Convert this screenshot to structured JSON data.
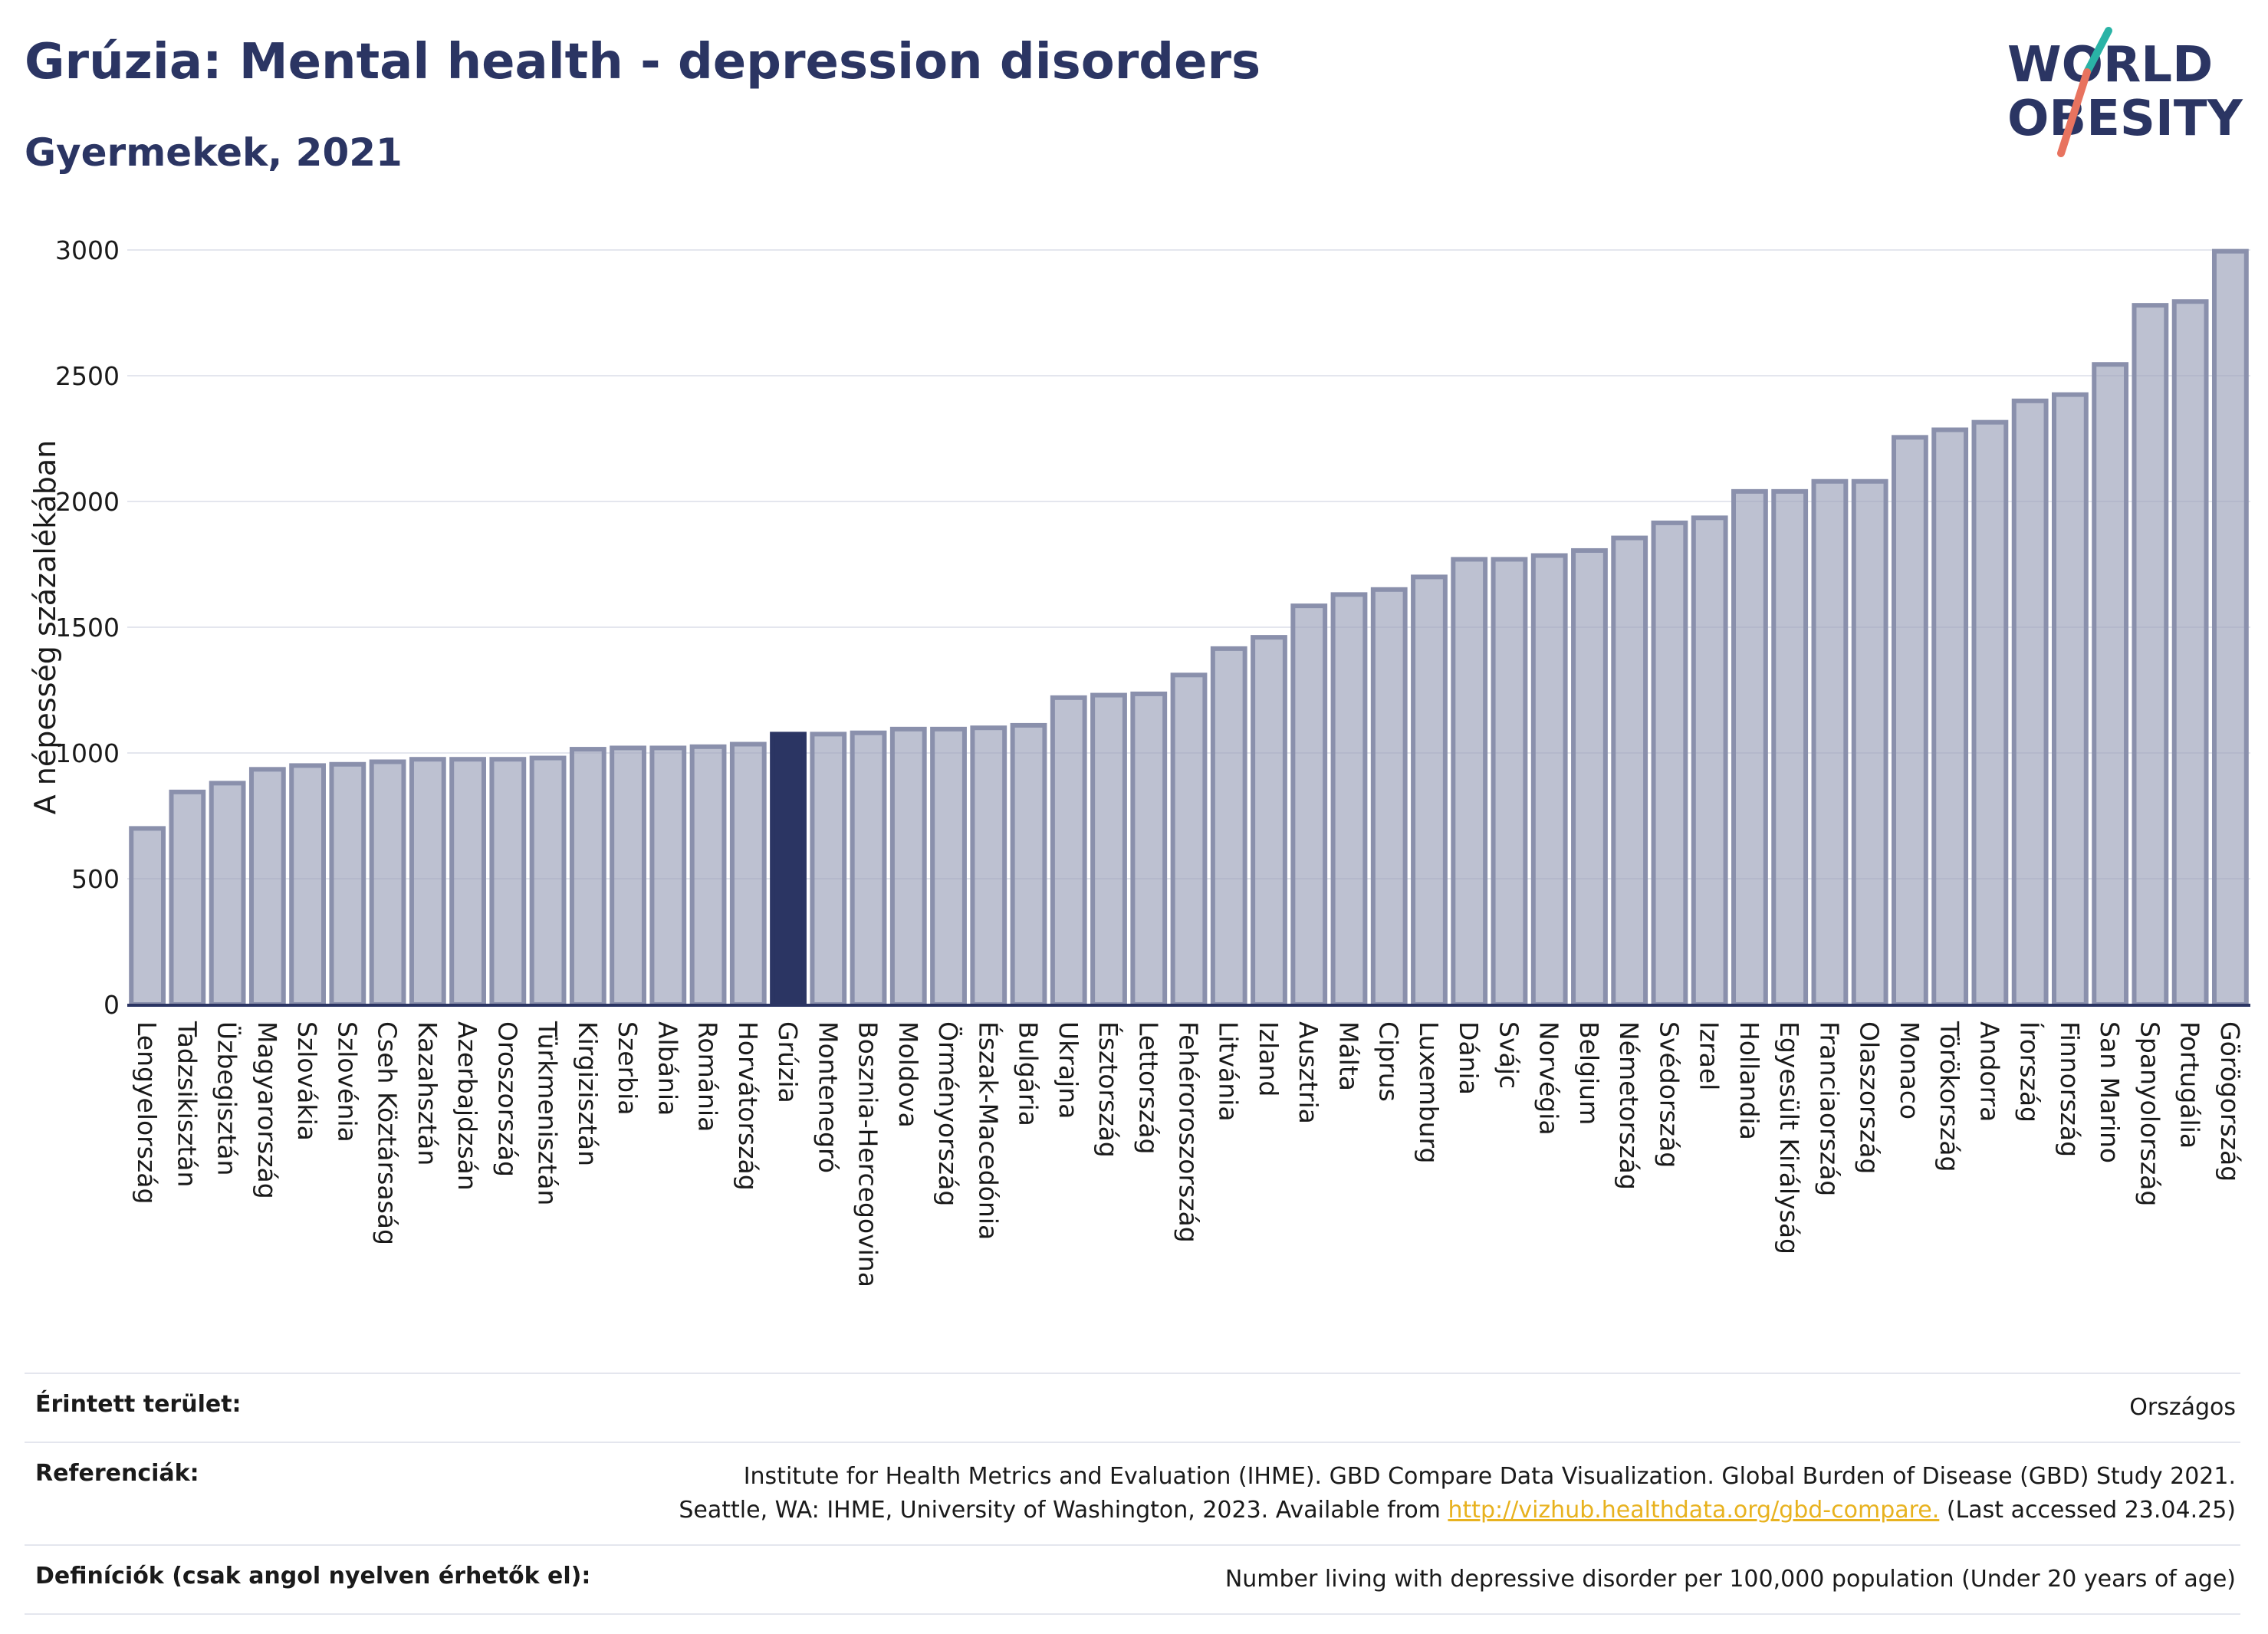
{
  "header": {
    "title": "Grúzia: Mental health - depression disorders",
    "subtitle": "Gyermekek, 2021"
  },
  "logo": {
    "line1": "WORLD",
    "line2": "OBESITY"
  },
  "chart_data": {
    "type": "bar",
    "title": "Grúzia: Mental health - depression disorders",
    "subtitle": "Gyermekek, 2021",
    "xlabel": "",
    "ylabel": "A népesség százalékában",
    "ylim": [
      0,
      3000
    ],
    "yticks": [
      0,
      500,
      1000,
      1500,
      2000,
      2500,
      3000
    ],
    "grid": true,
    "highlight": "Grúzia",
    "colors": {
      "bar": "#9aa0b8",
      "highlight": "#2b3563"
    },
    "categories": [
      "Lengyelország",
      "Tadzsikisztán",
      "Üzbegisztán",
      "Magyarország",
      "Szlovákia",
      "Szlovénia",
      "Cseh Köztársaság",
      "Kazahsztán",
      "Azerbajdzsán",
      "Oroszország",
      "Türkmenisztán",
      "Kirgizisztán",
      "Szerbia",
      "Albánia",
      "Románia",
      "Horvátország",
      "Grúzia",
      "Montenegró",
      "Bosznia-Hercegovina",
      "Moldova",
      "Örményország",
      "Észak-Macedónia",
      "Bulgária",
      "Ukrajna",
      "Észtország",
      "Lettország",
      "Fehéroroszország",
      "Litvánia",
      "Izland",
      "Ausztria",
      "Málta",
      "Ciprus",
      "Luxemburg",
      "Dánia",
      "Svájc",
      "Norvégia",
      "Belgium",
      "Németország",
      "Svédország",
      "Izrael",
      "Hollandia",
      "Egyesült Királyság",
      "Franciaország",
      "Olaszország",
      "Monaco",
      "Törökország",
      "Andorra",
      "Írország",
      "Finnország",
      "San Marino",
      "Spanyolország",
      "Portugália",
      "Görögország"
    ],
    "values": [
      700,
      845,
      880,
      935,
      950,
      955,
      965,
      975,
      975,
      975,
      980,
      1015,
      1020,
      1020,
      1025,
      1035,
      1075,
      1075,
      1080,
      1095,
      1095,
      1100,
      1110,
      1220,
      1230,
      1235,
      1310,
      1415,
      1460,
      1585,
      1630,
      1650,
      1700,
      1770,
      1770,
      1785,
      1805,
      1855,
      1915,
      1935,
      2040,
      2040,
      2080,
      2080,
      2255,
      2285,
      2315,
      2400,
      2425,
      2545,
      2780,
      2795,
      2995
    ]
  },
  "meta": {
    "area_label": "Érintett terület:",
    "area_value": "Országos",
    "references_label": "Referenciák:",
    "references_line1": "Institute for Health Metrics and Evaluation (IHME). GBD Compare Data Visualization. Global Burden of Disease (GBD) Study 2021.",
    "references_line2_pre": "Seattle, WA: IHME, University of Washington, 2023. Available from ",
    "references_link": "http://vizhub.healthdata.org/gbd-compare.",
    "references_line2_post": " (Last accessed 23.04.25)",
    "definitions_label": "Definíciók (csak angol nyelven érhetők el):",
    "definitions_value": "Number living with depressive disorder per 100,000 population (Under 20 years of age)"
  }
}
